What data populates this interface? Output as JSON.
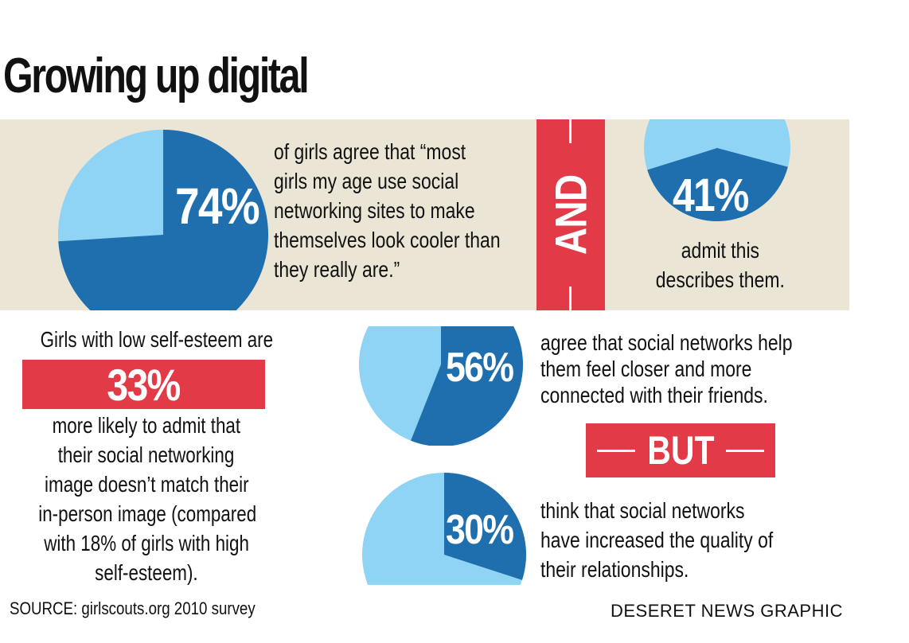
{
  "title": "Growing up digital",
  "colors": {
    "pie_dark": "#1f6fae",
    "pie_light": "#8fd3f5",
    "band": "#ebe5d6",
    "accent_red": "#e23b47"
  },
  "panel1": {
    "percent_label": "74%",
    "text_lines": [
      "of girls agree that “most",
      "girls my age use social",
      "networking sites to make",
      "themselves look cooler than",
      "they really are.”"
    ]
  },
  "connector_and": "AND",
  "panel2": {
    "percent_label": "41%",
    "text_lines": [
      "admit this",
      "describes them."
    ]
  },
  "panel3": {
    "lead": "Girls with low self-esteem are",
    "highlight": "33%",
    "text_lines": [
      "more likely to admit that",
      "their social networking",
      "image doesn’t match their",
      "in-person image (compared",
      "with 18% of girls with high",
      "self-esteem)."
    ]
  },
  "panel4": {
    "percent_label": "56%",
    "text_lines": [
      "agree that social networks help",
      "them feel closer and more",
      "connected with their friends."
    ]
  },
  "connector_but": "BUT",
  "panel5": {
    "percent_label": "30%",
    "text_lines": [
      "think that social networks",
      "have increased the quality of",
      "their relationships."
    ]
  },
  "source": "SOURCE: girlscouts.org 2010 survey",
  "credit": "DESERET NEWS GRAPHIC",
  "chart_data": [
    {
      "type": "pie",
      "slices": [
        {
          "label": "agree",
          "value": 74
        },
        {
          "label": "other",
          "value": 26
        }
      ]
    },
    {
      "type": "pie",
      "slices": [
        {
          "label": "admit",
          "value": 41
        },
        {
          "label": "other",
          "value": 59
        }
      ]
    },
    {
      "type": "pie",
      "slices": [
        {
          "label": "agree",
          "value": 56
        },
        {
          "label": "other",
          "value": 44
        }
      ]
    },
    {
      "type": "pie",
      "slices": [
        {
          "label": "think",
          "value": 30
        },
        {
          "label": "other",
          "value": 70
        }
      ]
    }
  ]
}
